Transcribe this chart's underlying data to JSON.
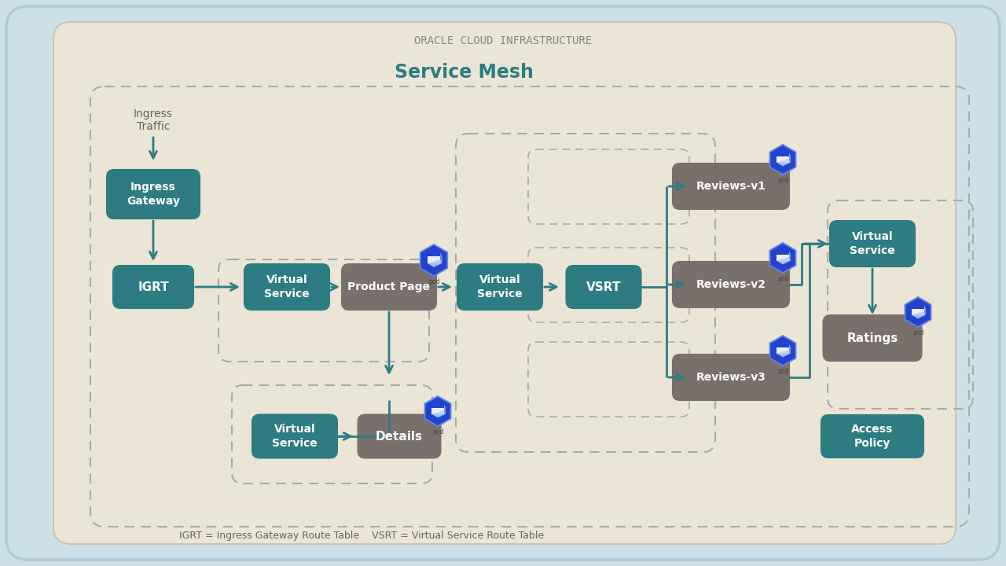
{
  "bg_outer": "#cce0e8",
  "bg_inner": "#eae5d5",
  "teal": "#2d7c82",
  "gray_box": "#7a706b",
  "blue_pod": "#2244cc",
  "white": "#ffffff",
  "arrow_color": "#2d7c82",
  "dash_color": "#aaaaaa",
  "text_muted": "#888877",
  "title_oci": "ORACLE CLOUD INFRASTRUCTURE",
  "title_sm": "Service Mesh",
  "footnote": "IGRT = Ingress Gateway Route Table    VSRT = Virtual Service Route Table",
  "ingress_label": "Ingress\nTraffic"
}
